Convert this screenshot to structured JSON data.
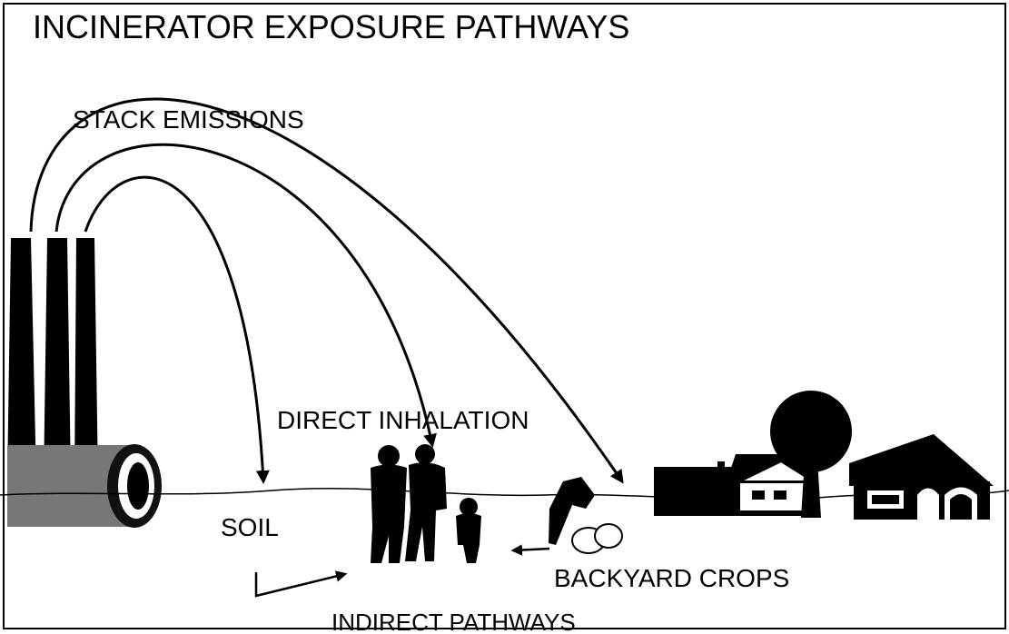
{
  "header": {
    "title": "INCINERATOR EXPOSURE PATHWAYS"
  },
  "labels": {
    "stack_emissions": "STACK EMISSIONS",
    "direct_inhalation": "DIRECT INHALATION",
    "soil": "SOIL",
    "backyard_crops": "BACKYARD CROPS",
    "indirect_pathways": "INDIRECT PATHWAYS"
  }
}
